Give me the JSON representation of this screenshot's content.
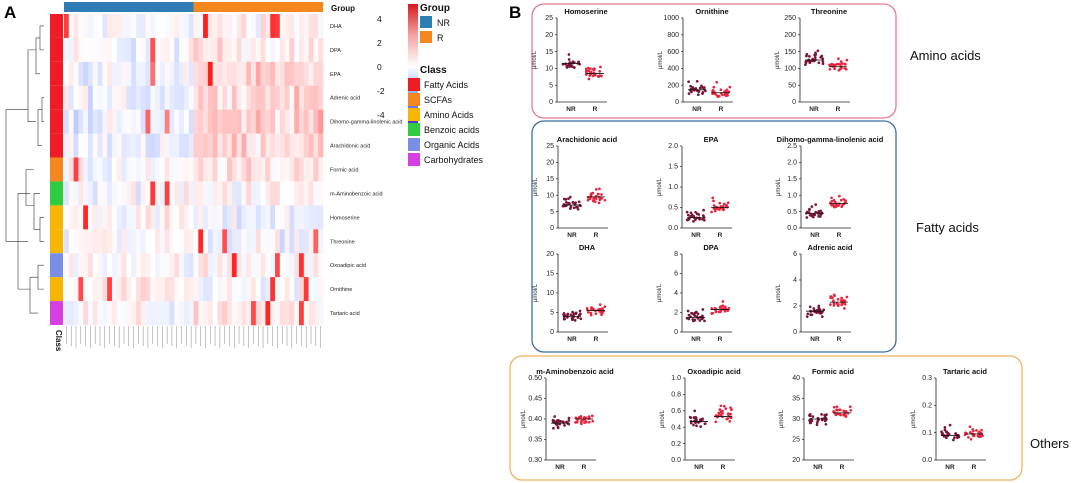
{
  "figure": {
    "panel_a_label": "A",
    "panel_b_label": "B"
  },
  "colors": {
    "nr": "#2e7db5",
    "r": "#f5871f",
    "fatty_acids": "#ee1c25",
    "scfas": "#f5871f",
    "amino_acids": "#f7b500",
    "benzoic_acids": "#2ecc40",
    "organic_acids": "#7a8ee6",
    "carbohydrates": "#d63fe0",
    "dot_nr": "#7a1436",
    "dot_r": "#e8253d",
    "amino_box": "#e37b93",
    "fatty_box": "#3a6ea5",
    "others_box": "#f0b263"
  },
  "legend": {
    "group_title": "Group",
    "group_items": [
      {
        "label": "NR",
        "color": "#2e7db5"
      },
      {
        "label": "R",
        "color": "#f5871f"
      }
    ],
    "scale_ticks": [
      "4",
      "2",
      "0",
      "-2",
      "-4"
    ],
    "class_title": "Class",
    "class_items": [
      {
        "label": "Fatty Acids",
        "color": "#ee1c25"
      },
      {
        "label": "SCFAs",
        "color": "#f5871f"
      },
      {
        "label": "Amino Acids",
        "color": "#f7b500"
      },
      {
        "label": "Benzoic acids",
        "color": "#2ecc40"
      },
      {
        "label": "Organic Acids",
        "color": "#7a8ee6"
      },
      {
        "label": "Carbohydrates",
        "color": "#d63fe0"
      }
    ]
  },
  "chart_data": [
    {
      "type": "heatmap",
      "panel": "A",
      "group_bar_label": "Group",
      "class_bar_label": "Class",
      "rows": [
        "DHA",
        "DPA",
        "EPA",
        "Adrenic acid",
        "Dihomo-gamma-linolenic acid",
        "Arachidonic acid",
        "Formic acid",
        "m-Aminobenzoic acid",
        "Homoserine",
        "Threonine",
        "Oxoadipic acid",
        "Ornithine",
        "Tartaric acid"
      ],
      "row_class": [
        "Fatty Acids",
        "Fatty Acids",
        "Fatty Acids",
        "Fatty Acids",
        "Fatty Acids",
        "Fatty Acids",
        "SCFAs",
        "Benzoic acids",
        "Amino Acids",
        "Amino Acids",
        "Organic Acids",
        "Amino Acids",
        "Carbohydrates"
      ],
      "column_groups": {
        "NR": 27,
        "R": 27
      },
      "color_scale": {
        "min": -4,
        "max": 4
      }
    },
    {
      "type": "scatter",
      "panel": "B",
      "groups": [
        {
          "label": "Amino acids",
          "plots": [
            {
              "title": "Homoserine",
              "ylabel": "μmol/L",
              "ylim": [
                0,
                25
              ],
              "yticks": [
                "25",
                "20",
                "15",
                "10",
                "5",
                "0"
              ],
              "categories": [
                "NR",
                "R"
              ],
              "medians": [
                11.5,
                8.5
              ]
            },
            {
              "title": "Ornithine",
              "ylabel": "μmol/L",
              "ylim": [
                0,
                1000
              ],
              "yticks": [
                "1000",
                "800",
                "600",
                "400",
                "200",
                "0"
              ],
              "categories": [
                "NR",
                "R"
              ],
              "medians": [
                145,
                110
              ]
            },
            {
              "title": "Threonine",
              "ylabel": "μmol/L",
              "ylim": [
                0,
                250
              ],
              "yticks": [
                "250",
                "200",
                "150",
                "100",
                "50",
                "0"
              ],
              "categories": [
                "NR",
                "R"
              ],
              "medians": [
                125,
                105
              ]
            }
          ]
        },
        {
          "label": "Fatty acids",
          "plots": [
            {
              "title": "Arachidonic acid",
              "ylabel": "μmol/L",
              "ylim": [
                0,
                25
              ],
              "yticks": [
                "25",
                "20",
                "15",
                "10",
                "5",
                "0"
              ],
              "categories": [
                "NR",
                "R"
              ],
              "medians": [
                7,
                9.5
              ]
            },
            {
              "title": "EPA",
              "ylabel": "μmol/L",
              "ylim": [
                0,
                2.0
              ],
              "yticks": [
                "2.0",
                "1.5",
                "1.0",
                "0.5",
                "0.0"
              ],
              "categories": [
                "NR",
                "R"
              ],
              "medians": [
                0.25,
                0.5
              ]
            },
            {
              "title": "Dihomo-gamma-linolenic acid",
              "ylabel": "μmol/L",
              "ylim": [
                0,
                2.5
              ],
              "yticks": [
                "2.5",
                "2.0",
                "1.5",
                "1.0",
                "0.5",
                "0.0"
              ],
              "categories": [
                "NR",
                "R"
              ],
              "medians": [
                0.45,
                0.75
              ]
            },
            {
              "title": "DHA",
              "ylabel": "μmol/L",
              "ylim": [
                0,
                20
              ],
              "yticks": [
                "20",
                "15",
                "10",
                "5",
                "0"
              ],
              "categories": [
                "NR",
                "R"
              ],
              "medians": [
                4,
                5.5
              ]
            },
            {
              "title": "DPA",
              "ylabel": "μmol/L",
              "ylim": [
                0,
                8
              ],
              "yticks": [
                "8",
                "6",
                "4",
                "2",
                "0"
              ],
              "categories": [
                "NR",
                "R"
              ],
              "medians": [
                1.5,
                2.3
              ]
            },
            {
              "title": "Adrenic acid",
              "ylabel": "μmol/L",
              "ylim": [
                0,
                6
              ],
              "yticks": [
                "6",
                "4",
                "2",
                "0"
              ],
              "categories": [
                "NR",
                "R"
              ],
              "medians": [
                1.6,
                2.3
              ]
            }
          ]
        },
        {
          "label": "Others",
          "plots": [
            {
              "title": "m-Aminobenzoic acid",
              "ylabel": "μmol/L",
              "ylim": [
                0.3,
                0.5
              ],
              "yticks": [
                "0.50",
                "0.45",
                "0.40",
                "0.35",
                "0.30"
              ],
              "categories": [
                "NR",
                "R"
              ],
              "medians": [
                0.39,
                0.4
              ]
            },
            {
              "title": "Oxoadipic acid",
              "ylabel": "μmol/L",
              "ylim": [
                0,
                1.0
              ],
              "yticks": [
                "1.0",
                "0.8",
                "0.6",
                "0.4",
                "0.2",
                "0.0"
              ],
              "categories": [
                "NR",
                "R"
              ],
              "medians": [
                0.47,
                0.53
              ]
            },
            {
              "title": "Formic acid",
              "ylabel": "μmol/L",
              "ylim": [
                20,
                40
              ],
              "yticks": [
                "40",
                "35",
                "30",
                "25",
                "20"
              ],
              "categories": [
                "NR",
                "R"
              ],
              "medians": [
                30,
                31.5
              ]
            },
            {
              "title": "Tartaric acid",
              "ylabel": "μmol/L",
              "ylim": [
                0,
                0.3
              ],
              "yticks": [
                "0.3",
                "0.2",
                "0.1",
                "0.0"
              ],
              "categories": [
                "NR",
                "R"
              ],
              "medians": [
                0.09,
                0.095
              ]
            }
          ]
        }
      ]
    }
  ]
}
